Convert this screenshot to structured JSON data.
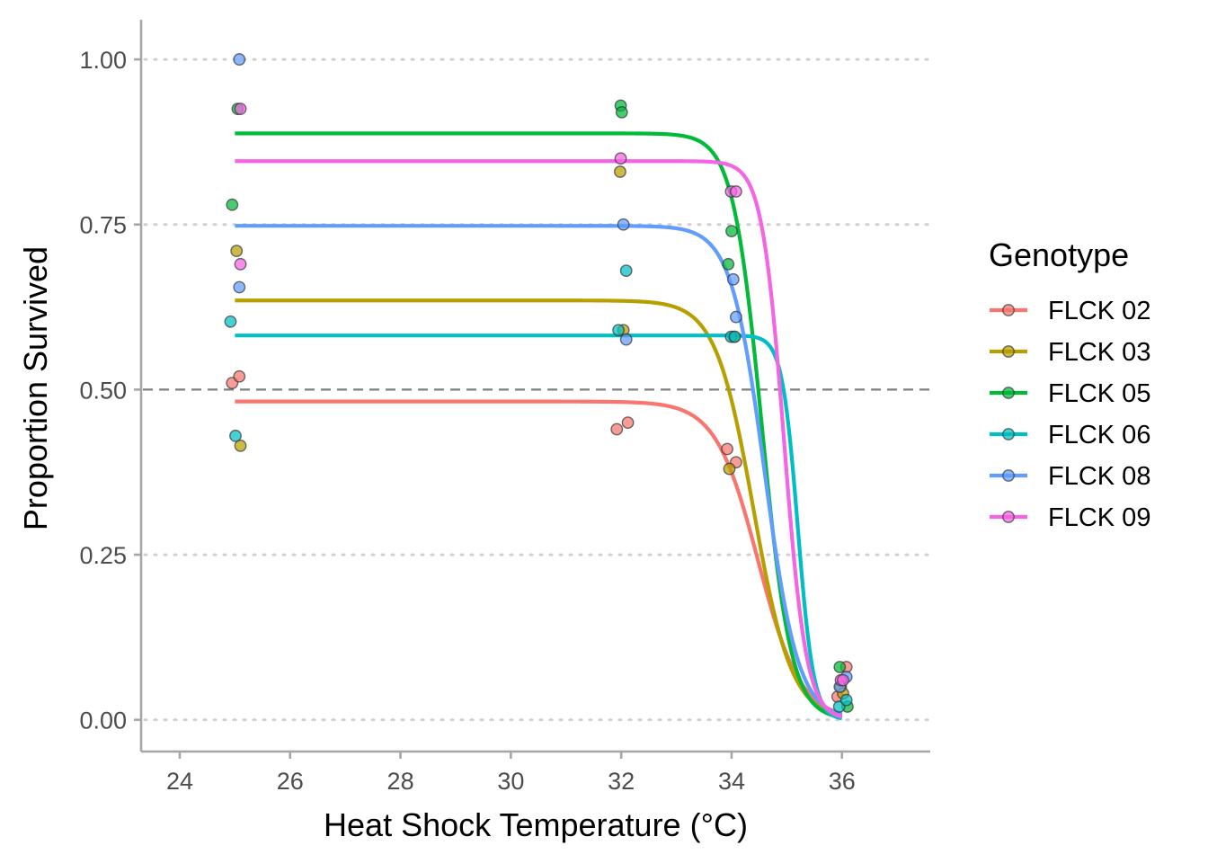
{
  "chart_data": {
    "type": "scatter",
    "title": "",
    "xlabel": "Heat Shock Temperature (°C)",
    "ylabel": "Proportion Survived",
    "xlim": [
      23.3,
      37.6
    ],
    "ylim": [
      -0.048,
      1.06
    ],
    "xticks": [
      24,
      26,
      28,
      30,
      32,
      34,
      36
    ],
    "yticks": [
      0.0,
      0.25,
      0.5,
      0.75,
      1.0
    ],
    "xtick_labels": [
      "24",
      "26",
      "28",
      "30",
      "32",
      "34",
      "36"
    ],
    "ytick_labels": [
      "0.00",
      "0.25",
      "0.50",
      "0.75",
      "1.00"
    ],
    "grid": "horizontal dotted at y ticks",
    "reference_line": {
      "y": 0.5,
      "style": "dashed"
    },
    "legend": {
      "title": "Genotype",
      "position": "right"
    },
    "series": [
      {
        "name": "FLCK 02",
        "color": "#F8766D",
        "points": [
          [
            24.95,
            0.51
          ],
          [
            25.08,
            0.52
          ],
          [
            31.92,
            0.44
          ],
          [
            32.12,
            0.45
          ],
          [
            33.92,
            0.41
          ],
          [
            34.08,
            0.39
          ],
          [
            35.92,
            0.035
          ],
          [
            36.08,
            0.08
          ]
        ],
        "fit": {
          "top": 0.482,
          "x50": 34.48,
          "steepness": 2.6
        }
      },
      {
        "name": "FLCK 03",
        "color": "#B79F00",
        "points": [
          [
            25.03,
            0.71
          ],
          [
            25.1,
            0.415
          ],
          [
            31.98,
            0.83
          ],
          [
            32.04,
            0.59
          ],
          [
            33.96,
            0.38
          ],
          [
            34.04,
            0.58
          ],
          [
            35.98,
            0.05
          ],
          [
            36.02,
            0.04
          ]
        ],
        "fit": {
          "top": 0.635,
          "x50": 34.4,
          "steepness": 2.9
        }
      },
      {
        "name": "FLCK 05",
        "color": "#00BA38",
        "points": [
          [
            24.95,
            0.78
          ],
          [
            25.05,
            0.925
          ],
          [
            31.99,
            0.93
          ],
          [
            32.01,
            0.92
          ],
          [
            33.94,
            0.69
          ],
          [
            34.0,
            0.74
          ],
          [
            35.96,
            0.08
          ],
          [
            36.1,
            0.02
          ]
        ],
        "fit": {
          "top": 0.888,
          "x50": 34.55,
          "steepness": 3.8
        }
      },
      {
        "name": "FLCK 06",
        "color": "#00BFC4",
        "points": [
          [
            24.92,
            0.603
          ],
          [
            25.01,
            0.43
          ],
          [
            31.95,
            0.59
          ],
          [
            32.09,
            0.68
          ],
          [
            33.99,
            0.58
          ],
          [
            34.06,
            0.58
          ],
          [
            35.95,
            0.02
          ],
          [
            36.08,
            0.03
          ]
        ],
        "fit": {
          "top": 0.582,
          "x50": 35.2,
          "steepness": 7.0
        }
      },
      {
        "name": "FLCK 08",
        "color": "#619CFF",
        "points": [
          [
            25.08,
            1.0
          ],
          [
            25.08,
            0.655
          ],
          [
            32.04,
            0.75
          ],
          [
            32.09,
            0.576
          ],
          [
            34.03,
            0.667
          ],
          [
            34.08,
            0.61
          ],
          [
            35.96,
            0.05
          ],
          [
            36.08,
            0.065
          ]
        ],
        "fit": {
          "top": 0.748,
          "x50": 34.6,
          "steepness": 3.3
        }
      },
      {
        "name": "FLCK 09",
        "color": "#F564E3",
        "points": [
          [
            25.1,
            0.925
          ],
          [
            25.1,
            0.69
          ],
          [
            31.99,
            0.85
          ],
          [
            33.99,
            0.8
          ],
          [
            34.08,
            0.8
          ],
          [
            35.98,
            0.06
          ],
          [
            36.02,
            0.06
          ]
        ],
        "fit": {
          "top": 0.846,
          "x50": 34.95,
          "steepness": 5.0
        }
      }
    ]
  }
}
